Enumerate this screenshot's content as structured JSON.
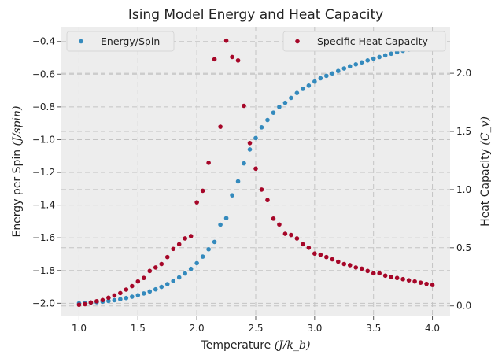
{
  "chart_data": {
    "type": "scatter",
    "title": "Ising Model Energy and Heat Capacity",
    "xlabel": {
      "text": "Temperature",
      "unit": "(J/k_b)"
    },
    "ylabel_left": {
      "text": "Energy per Spin",
      "unit": "(J/spin)"
    },
    "ylabel_right": {
      "text": "Heat Capacity",
      "unit": "(C_v)"
    },
    "xlim": [
      0.85,
      4.15
    ],
    "ylim_left": [
      -2.08,
      -0.31
    ],
    "ylim_right": [
      -0.09,
      2.4
    ],
    "xticks": [
      "1.0",
      "1.5",
      "2.0",
      "2.5",
      "3.0",
      "3.5",
      "4.0"
    ],
    "yticks_left": [
      "−2.0",
      "−1.8",
      "−1.6",
      "−1.4",
      "−1.2",
      "−1.0",
      "−0.8",
      "−0.6",
      "−0.4"
    ],
    "yticks_right": [
      "0.0",
      "0.5",
      "1.0",
      "1.5",
      "2.0"
    ],
    "grid": true,
    "background": "#ededed",
    "legends": [
      {
        "placement": "top-left",
        "label": "Energy/Spin",
        "color": "#348abd"
      },
      {
        "placement": "top-right",
        "label": "Specific Heat Capacity",
        "color": "#a60628"
      }
    ],
    "series": [
      {
        "name": "Energy/Spin",
        "axis": "left",
        "color": "#348abd",
        "x": [
          1.0,
          1.05,
          1.1,
          1.15,
          1.2,
          1.25,
          1.3,
          1.35,
          1.4,
          1.45,
          1.5,
          1.55,
          1.6,
          1.65,
          1.7,
          1.75,
          1.8,
          1.85,
          1.9,
          1.95,
          2.0,
          2.05,
          2.1,
          2.15,
          2.2,
          2.25,
          2.3,
          2.35,
          2.4,
          2.45,
          2.5,
          2.55,
          2.6,
          2.65,
          2.7,
          2.75,
          2.8,
          2.85,
          2.9,
          2.95,
          3.0,
          3.05,
          3.1,
          3.15,
          3.2,
          3.25,
          3.3,
          3.35,
          3.4,
          3.45,
          3.5,
          3.55,
          3.6,
          3.65,
          3.7,
          3.75,
          3.8,
          3.85,
          3.9,
          3.95,
          4.0
        ],
        "y": [
          -2.0,
          -1.998,
          -1.996,
          -1.993,
          -1.99,
          -1.986,
          -1.981,
          -1.975,
          -1.968,
          -1.96,
          -1.951,
          -1.94,
          -1.928,
          -1.915,
          -1.9,
          -1.883,
          -1.864,
          -1.842,
          -1.818,
          -1.79,
          -1.755,
          -1.715,
          -1.67,
          -1.625,
          -1.52,
          -1.48,
          -1.34,
          -1.255,
          -1.145,
          -1.06,
          -0.99,
          -0.925,
          -0.88,
          -0.835,
          -0.8,
          -0.775,
          -0.745,
          -0.715,
          -0.69,
          -0.67,
          -0.645,
          -0.625,
          -0.61,
          -0.595,
          -0.58,
          -0.565,
          -0.552,
          -0.54,
          -0.528,
          -0.516,
          -0.505,
          -0.495,
          -0.485,
          -0.475,
          -0.466,
          -0.457,
          -0.449,
          -0.441,
          -0.434,
          -0.427,
          -0.42
        ]
      },
      {
        "name": "Specific Heat Capacity",
        "axis": "right",
        "color": "#a60628",
        "x": [
          1.0,
          1.05,
          1.1,
          1.15,
          1.2,
          1.25,
          1.3,
          1.35,
          1.4,
          1.45,
          1.5,
          1.55,
          1.6,
          1.65,
          1.7,
          1.75,
          1.8,
          1.85,
          1.9,
          1.95,
          2.0,
          2.05,
          2.1,
          2.15,
          2.2,
          2.25,
          2.3,
          2.35,
          2.4,
          2.45,
          2.5,
          2.55,
          2.6,
          2.65,
          2.7,
          2.75,
          2.8,
          2.85,
          2.9,
          2.95,
          3.0,
          3.05,
          3.1,
          3.15,
          3.2,
          3.25,
          3.3,
          3.35,
          3.4,
          3.45,
          3.5,
          3.55,
          3.6,
          3.65,
          3.7,
          3.75,
          3.8,
          3.85,
          3.9,
          3.95,
          4.0
        ],
        "y": [
          0.01,
          0.015,
          0.03,
          0.04,
          0.05,
          0.07,
          0.09,
          0.11,
          0.14,
          0.17,
          0.21,
          0.24,
          0.3,
          0.33,
          0.36,
          0.42,
          0.49,
          0.53,
          0.58,
          0.6,
          0.89,
          0.99,
          1.23,
          2.12,
          1.54,
          2.28,
          2.14,
          2.11,
          1.72,
          1.4,
          1.18,
          1.0,
          0.91,
          0.75,
          0.7,
          0.62,
          0.61,
          0.58,
          0.53,
          0.5,
          0.45,
          0.44,
          0.42,
          0.4,
          0.38,
          0.36,
          0.35,
          0.33,
          0.32,
          0.3,
          0.28,
          0.28,
          0.26,
          0.25,
          0.24,
          0.23,
          0.22,
          0.21,
          0.2,
          0.19,
          0.18
        ]
      }
    ]
  }
}
